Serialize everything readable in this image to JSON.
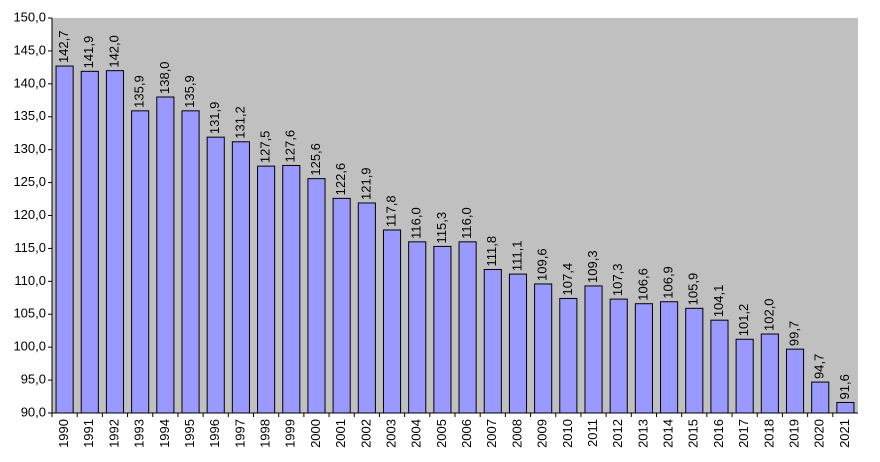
{
  "chart_data": {
    "type": "bar",
    "categories": [
      "1990",
      "1991",
      "1992",
      "1993",
      "1994",
      "1995",
      "1996",
      "1997",
      "1998",
      "1999",
      "2000",
      "2001",
      "2002",
      "2003",
      "2004",
      "2005",
      "2006",
      "2007",
      "2008",
      "2009",
      "2010",
      "2011",
      "2012",
      "2013",
      "2014",
      "2015",
      "2016",
      "2017",
      "2018",
      "2019",
      "2020",
      "2021"
    ],
    "values": [
      142.7,
      141.9,
      142.0,
      135.9,
      138.0,
      135.9,
      131.9,
      131.2,
      127.5,
      127.6,
      125.6,
      122.6,
      121.9,
      117.8,
      116.0,
      115.3,
      116.0,
      111.8,
      111.1,
      109.6,
      107.4,
      109.3,
      107.3,
      106.6,
      106.9,
      105.9,
      104.1,
      101.2,
      102.0,
      99.7,
      94.7,
      91.6
    ],
    "value_labels": [
      "142,7",
      "141,9",
      "142,0",
      "135,9",
      "138,0",
      "135,9",
      "131,9",
      "131,2",
      "127,5",
      "127,6",
      "125,6",
      "122,6",
      "121,9",
      "117,8",
      "116,0",
      "115,3",
      "116,0",
      "111,8",
      "111,1",
      "109,6",
      "107,4",
      "109,3",
      "107,3",
      "106,6",
      "106,9",
      "105,9",
      "104,1",
      "101,2",
      "102,0",
      "99,7",
      "94,7",
      "91,6"
    ],
    "color": "#9999ff",
    "ylim": [
      90,
      150
    ],
    "yticks": [
      {
        "value": 90,
        "label": "90,0"
      },
      {
        "value": 95,
        "label": "95,0"
      },
      {
        "value": 100,
        "label": "100,0"
      },
      {
        "value": 105,
        "label": "105,0"
      },
      {
        "value": 110,
        "label": "110,0"
      },
      {
        "value": 115,
        "label": "115,0"
      },
      {
        "value": 120,
        "label": "120,0"
      },
      {
        "value": 125,
        "label": "125,0"
      },
      {
        "value": 130,
        "label": "130,0"
      },
      {
        "value": 135,
        "label": "135,0"
      },
      {
        "value": 140,
        "label": "140,0"
      },
      {
        "value": 145,
        "label": "145,0"
      },
      {
        "value": 150,
        "label": "150,0"
      }
    ],
    "grid": false
  }
}
